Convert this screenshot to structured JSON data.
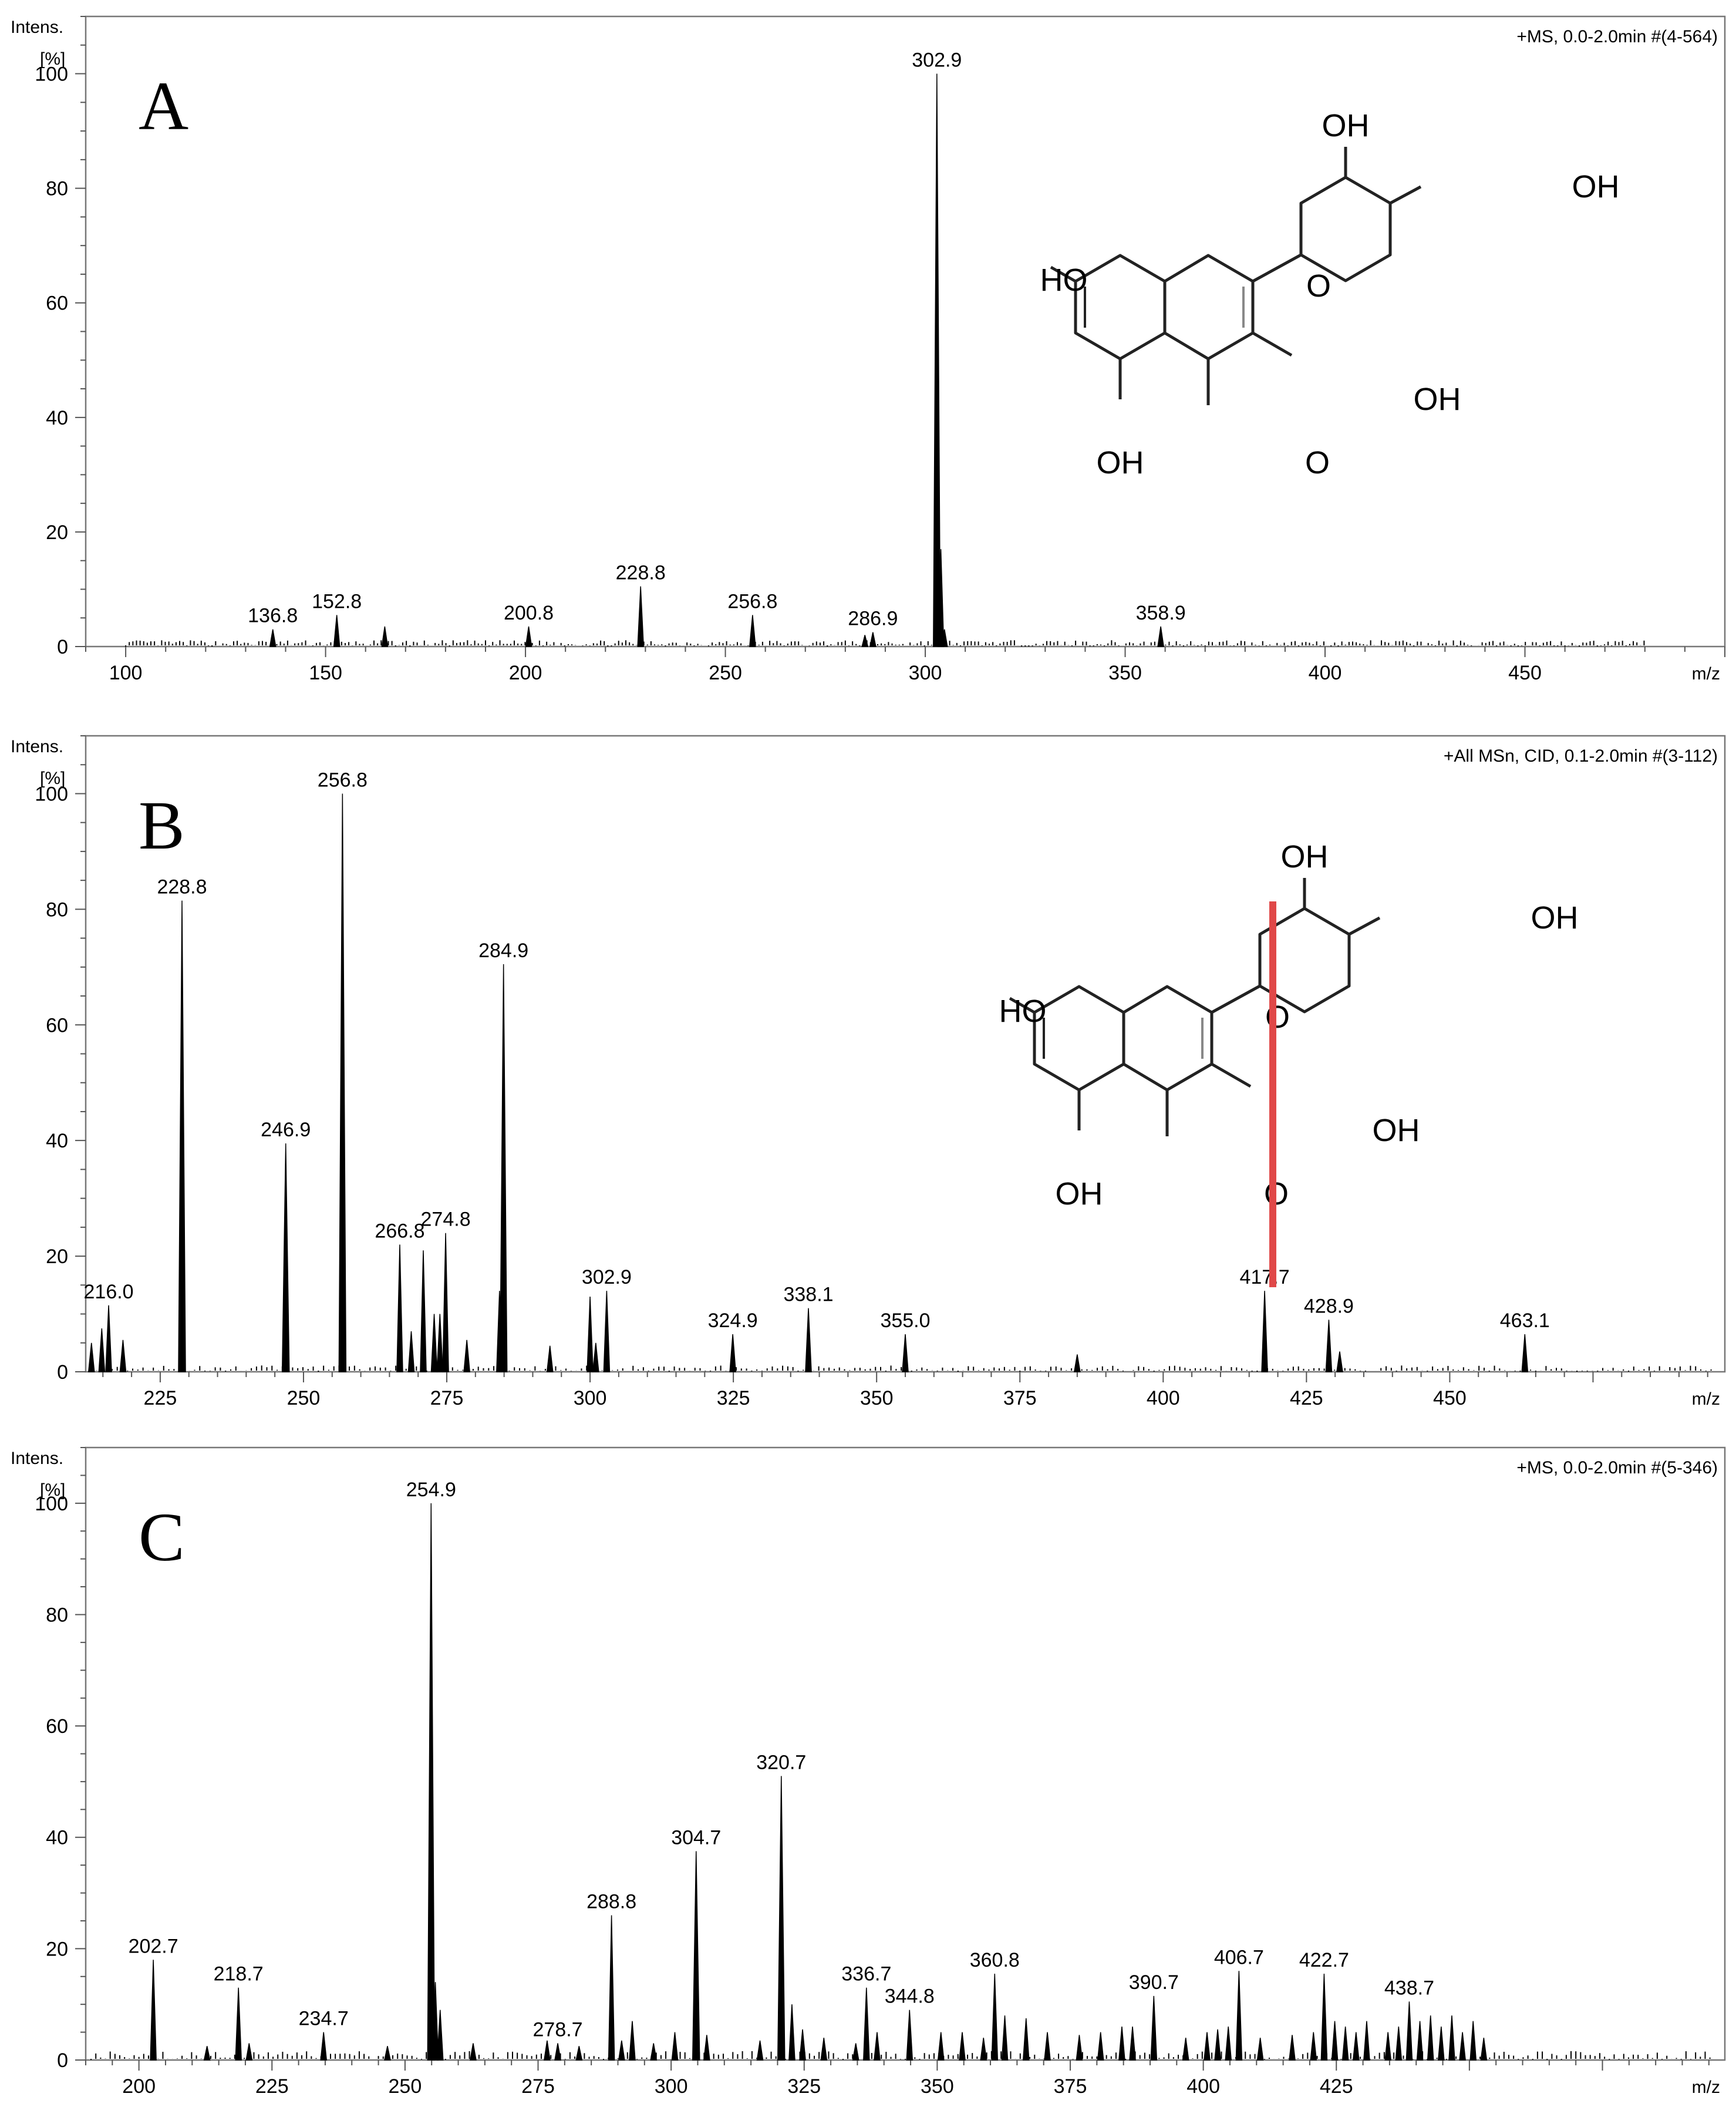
{
  "chart_data": [
    {
      "type": "mass-spectrum",
      "panel_label": "A",
      "ylabel_line1": "Intens.",
      "ylabel_line2": "[%]",
      "xlabel": "m/z",
      "scan_info": "+MS, 0.0-2.0min #(4-564)",
      "xlim": [
        90,
        500
      ],
      "ylim": [
        0,
        110
      ],
      "xticks": [
        100,
        150,
        200,
        250,
        300,
        350,
        400,
        450
      ],
      "yticks": [
        0,
        20,
        40,
        60,
        80,
        100
      ],
      "peaks": [
        {
          "mz": 136.8,
          "intensity": 3,
          "label": "136.8"
        },
        {
          "mz": 152.8,
          "intensity": 5.5,
          "label": "152.8"
        },
        {
          "mz": 164.8,
          "intensity": 3.5
        },
        {
          "mz": 200.8,
          "intensity": 3.5,
          "label": "200.8"
        },
        {
          "mz": 228.8,
          "intensity": 10.5,
          "label": "228.8"
        },
        {
          "mz": 256.8,
          "intensity": 5.5,
          "label": "256.8"
        },
        {
          "mz": 284.9,
          "intensity": 2
        },
        {
          "mz": 286.9,
          "intensity": 2.5,
          "label": "286.9"
        },
        {
          "mz": 302.9,
          "intensity": 100,
          "label": "302.9"
        },
        {
          "mz": 303.9,
          "intensity": 17
        },
        {
          "mz": 304.8,
          "intensity": 3
        },
        {
          "mz": 358.9,
          "intensity": 3.5,
          "label": "358.9"
        }
      ],
      "structure": {
        "labels": [
          "OH",
          "OH",
          "HO",
          "O",
          "OH",
          "OH",
          "O"
        ],
        "cleavage_line": false
      }
    },
    {
      "type": "mass-spectrum",
      "panel_label": "B",
      "ylabel_line1": "Intens.",
      "ylabel_line2": "[%]",
      "xlabel": "m/z",
      "scan_info": "+All MSn, CID, 0.1-2.0min #(3-112)",
      "xlim": [
        212,
        498
      ],
      "ylim": [
        0,
        110
      ],
      "xticks": [
        225,
        250,
        275,
        300,
        325,
        350,
        375,
        400,
        425,
        450
      ],
      "yticks": [
        0,
        20,
        40,
        60,
        80,
        100
      ],
      "peaks": [
        {
          "mz": 213,
          "intensity": 5
        },
        {
          "mz": 214.8,
          "intensity": 7.5
        },
        {
          "mz": 216.0,
          "intensity": 11.5,
          "label": "216.0"
        },
        {
          "mz": 218.5,
          "intensity": 5.5
        },
        {
          "mz": 228.8,
          "intensity": 81.5,
          "label": "228.8"
        },
        {
          "mz": 246.9,
          "intensity": 39.5,
          "label": "246.9"
        },
        {
          "mz": 256.8,
          "intensity": 100,
          "label": "256.8"
        },
        {
          "mz": 266.8,
          "intensity": 22,
          "label": "266.8"
        },
        {
          "mz": 268.8,
          "intensity": 7
        },
        {
          "mz": 270.9,
          "intensity": 21
        },
        {
          "mz": 272.8,
          "intensity": 10
        },
        {
          "mz": 273.8,
          "intensity": 10
        },
        {
          "mz": 274.8,
          "intensity": 24,
          "label": "274.8"
        },
        {
          "mz": 278.5,
          "intensity": 5.5
        },
        {
          "mz": 284.2,
          "intensity": 14
        },
        {
          "mz": 284.9,
          "intensity": 70.5,
          "label": "284.9"
        },
        {
          "mz": 293,
          "intensity": 4.5
        },
        {
          "mz": 300.0,
          "intensity": 13
        },
        {
          "mz": 301.0,
          "intensity": 5
        },
        {
          "mz": 302.9,
          "intensity": 14,
          "label": "302.9"
        },
        {
          "mz": 324.9,
          "intensity": 6.5,
          "label": "324.9"
        },
        {
          "mz": 338.1,
          "intensity": 11,
          "label": "338.1"
        },
        {
          "mz": 355.0,
          "intensity": 6.5,
          "label": "355.0"
        },
        {
          "mz": 385,
          "intensity": 3
        },
        {
          "mz": 417.7,
          "intensity": 14,
          "label": "417.7"
        },
        {
          "mz": 428.9,
          "intensity": 9,
          "label": "428.9"
        },
        {
          "mz": 430.8,
          "intensity": 3.5
        },
        {
          "mz": 463.1,
          "intensity": 6.5,
          "label": "463.1"
        }
      ],
      "structure": {
        "labels": [
          "OH",
          "OH",
          "HO",
          "O",
          "OH",
          "OH",
          "O"
        ],
        "cleavage_line": true,
        "cleavage_color": "#e04848"
      }
    },
    {
      "type": "mass-spectrum",
      "panel_label": "C",
      "ylabel_line1": "Intens.",
      "ylabel_line2": "[%]",
      "xlabel": "m/z",
      "scan_info": "+MS, 0.0-2.0min #(5-346)",
      "xlim": [
        190,
        498
      ],
      "ylim": [
        0,
        110
      ],
      "xticks": [
        200,
        225,
        250,
        275,
        300,
        325,
        350,
        375,
        400,
        425
      ],
      "yticks": [
        0,
        20,
        40,
        60,
        80,
        100
      ],
      "peaks": [
        {
          "mz": 202.7,
          "intensity": 18,
          "label": "202.7"
        },
        {
          "mz": 212.8,
          "intensity": 2.5
        },
        {
          "mz": 218.7,
          "intensity": 13,
          "label": "218.7"
        },
        {
          "mz": 220.7,
          "intensity": 3
        },
        {
          "mz": 234.7,
          "intensity": 5,
          "label": "234.7"
        },
        {
          "mz": 246.7,
          "intensity": 2.5
        },
        {
          "mz": 254.9,
          "intensity": 100,
          "label": "254.9"
        },
        {
          "mz": 255.7,
          "intensity": 14
        },
        {
          "mz": 256.6,
          "intensity": 9
        },
        {
          "mz": 262.8,
          "intensity": 3
        },
        {
          "mz": 276.7,
          "intensity": 3.5
        },
        {
          "mz": 278.7,
          "intensity": 3,
          "label": "278.7"
        },
        {
          "mz": 282.7,
          "intensity": 2.5
        },
        {
          "mz": 288.8,
          "intensity": 26,
          "label": "288.8"
        },
        {
          "mz": 290.7,
          "intensity": 3.5
        },
        {
          "mz": 292.7,
          "intensity": 7
        },
        {
          "mz": 296.7,
          "intensity": 3
        },
        {
          "mz": 300.7,
          "intensity": 5
        },
        {
          "mz": 304.7,
          "intensity": 37.5,
          "label": "304.7"
        },
        {
          "mz": 306.7,
          "intensity": 4.5
        },
        {
          "mz": 316.7,
          "intensity": 3.5
        },
        {
          "mz": 320.7,
          "intensity": 51,
          "label": "320.7"
        },
        {
          "mz": 322.7,
          "intensity": 10
        },
        {
          "mz": 324.7,
          "intensity": 5.5
        },
        {
          "mz": 328.7,
          "intensity": 4
        },
        {
          "mz": 334.7,
          "intensity": 3
        },
        {
          "mz": 336.7,
          "intensity": 13,
          "label": "336.7"
        },
        {
          "mz": 338.7,
          "intensity": 5
        },
        {
          "mz": 344.8,
          "intensity": 9,
          "label": "344.8"
        },
        {
          "mz": 350.7,
          "intensity": 5
        },
        {
          "mz": 354.7,
          "intensity": 5
        },
        {
          "mz": 358.7,
          "intensity": 4
        },
        {
          "mz": 360.8,
          "intensity": 15.5,
          "label": "360.8"
        },
        {
          "mz": 362.7,
          "intensity": 8
        },
        {
          "mz": 366.7,
          "intensity": 7.5
        },
        {
          "mz": 370.7,
          "intensity": 5
        },
        {
          "mz": 376.7,
          "intensity": 4.5
        },
        {
          "mz": 380.7,
          "intensity": 5
        },
        {
          "mz": 384.7,
          "intensity": 6
        },
        {
          "mz": 386.7,
          "intensity": 6
        },
        {
          "mz": 390.7,
          "intensity": 11.5,
          "label": "390.7"
        },
        {
          "mz": 396.7,
          "intensity": 4
        },
        {
          "mz": 400.7,
          "intensity": 5
        },
        {
          "mz": 402.7,
          "intensity": 5.5
        },
        {
          "mz": 404.7,
          "intensity": 6
        },
        {
          "mz": 406.7,
          "intensity": 16,
          "label": "406.7"
        },
        {
          "mz": 410.7,
          "intensity": 4
        },
        {
          "mz": 416.7,
          "intensity": 4.5
        },
        {
          "mz": 420.7,
          "intensity": 5
        },
        {
          "mz": 422.7,
          "intensity": 15.5,
          "label": "422.7"
        },
        {
          "mz": 424.7,
          "intensity": 7
        },
        {
          "mz": 426.7,
          "intensity": 6
        },
        {
          "mz": 428.7,
          "intensity": 5
        },
        {
          "mz": 430.7,
          "intensity": 7
        },
        {
          "mz": 434.7,
          "intensity": 5
        },
        {
          "mz": 436.7,
          "intensity": 6
        },
        {
          "mz": 438.7,
          "intensity": 10.5,
          "label": "438.7"
        },
        {
          "mz": 440.7,
          "intensity": 7
        },
        {
          "mz": 442.7,
          "intensity": 8
        },
        {
          "mz": 444.7,
          "intensity": 6
        },
        {
          "mz": 446.7,
          "intensity": 8
        },
        {
          "mz": 448.7,
          "intensity": 5
        },
        {
          "mz": 450.7,
          "intensity": 7
        },
        {
          "mz": 452.7,
          "intensity": 4
        }
      ]
    }
  ]
}
